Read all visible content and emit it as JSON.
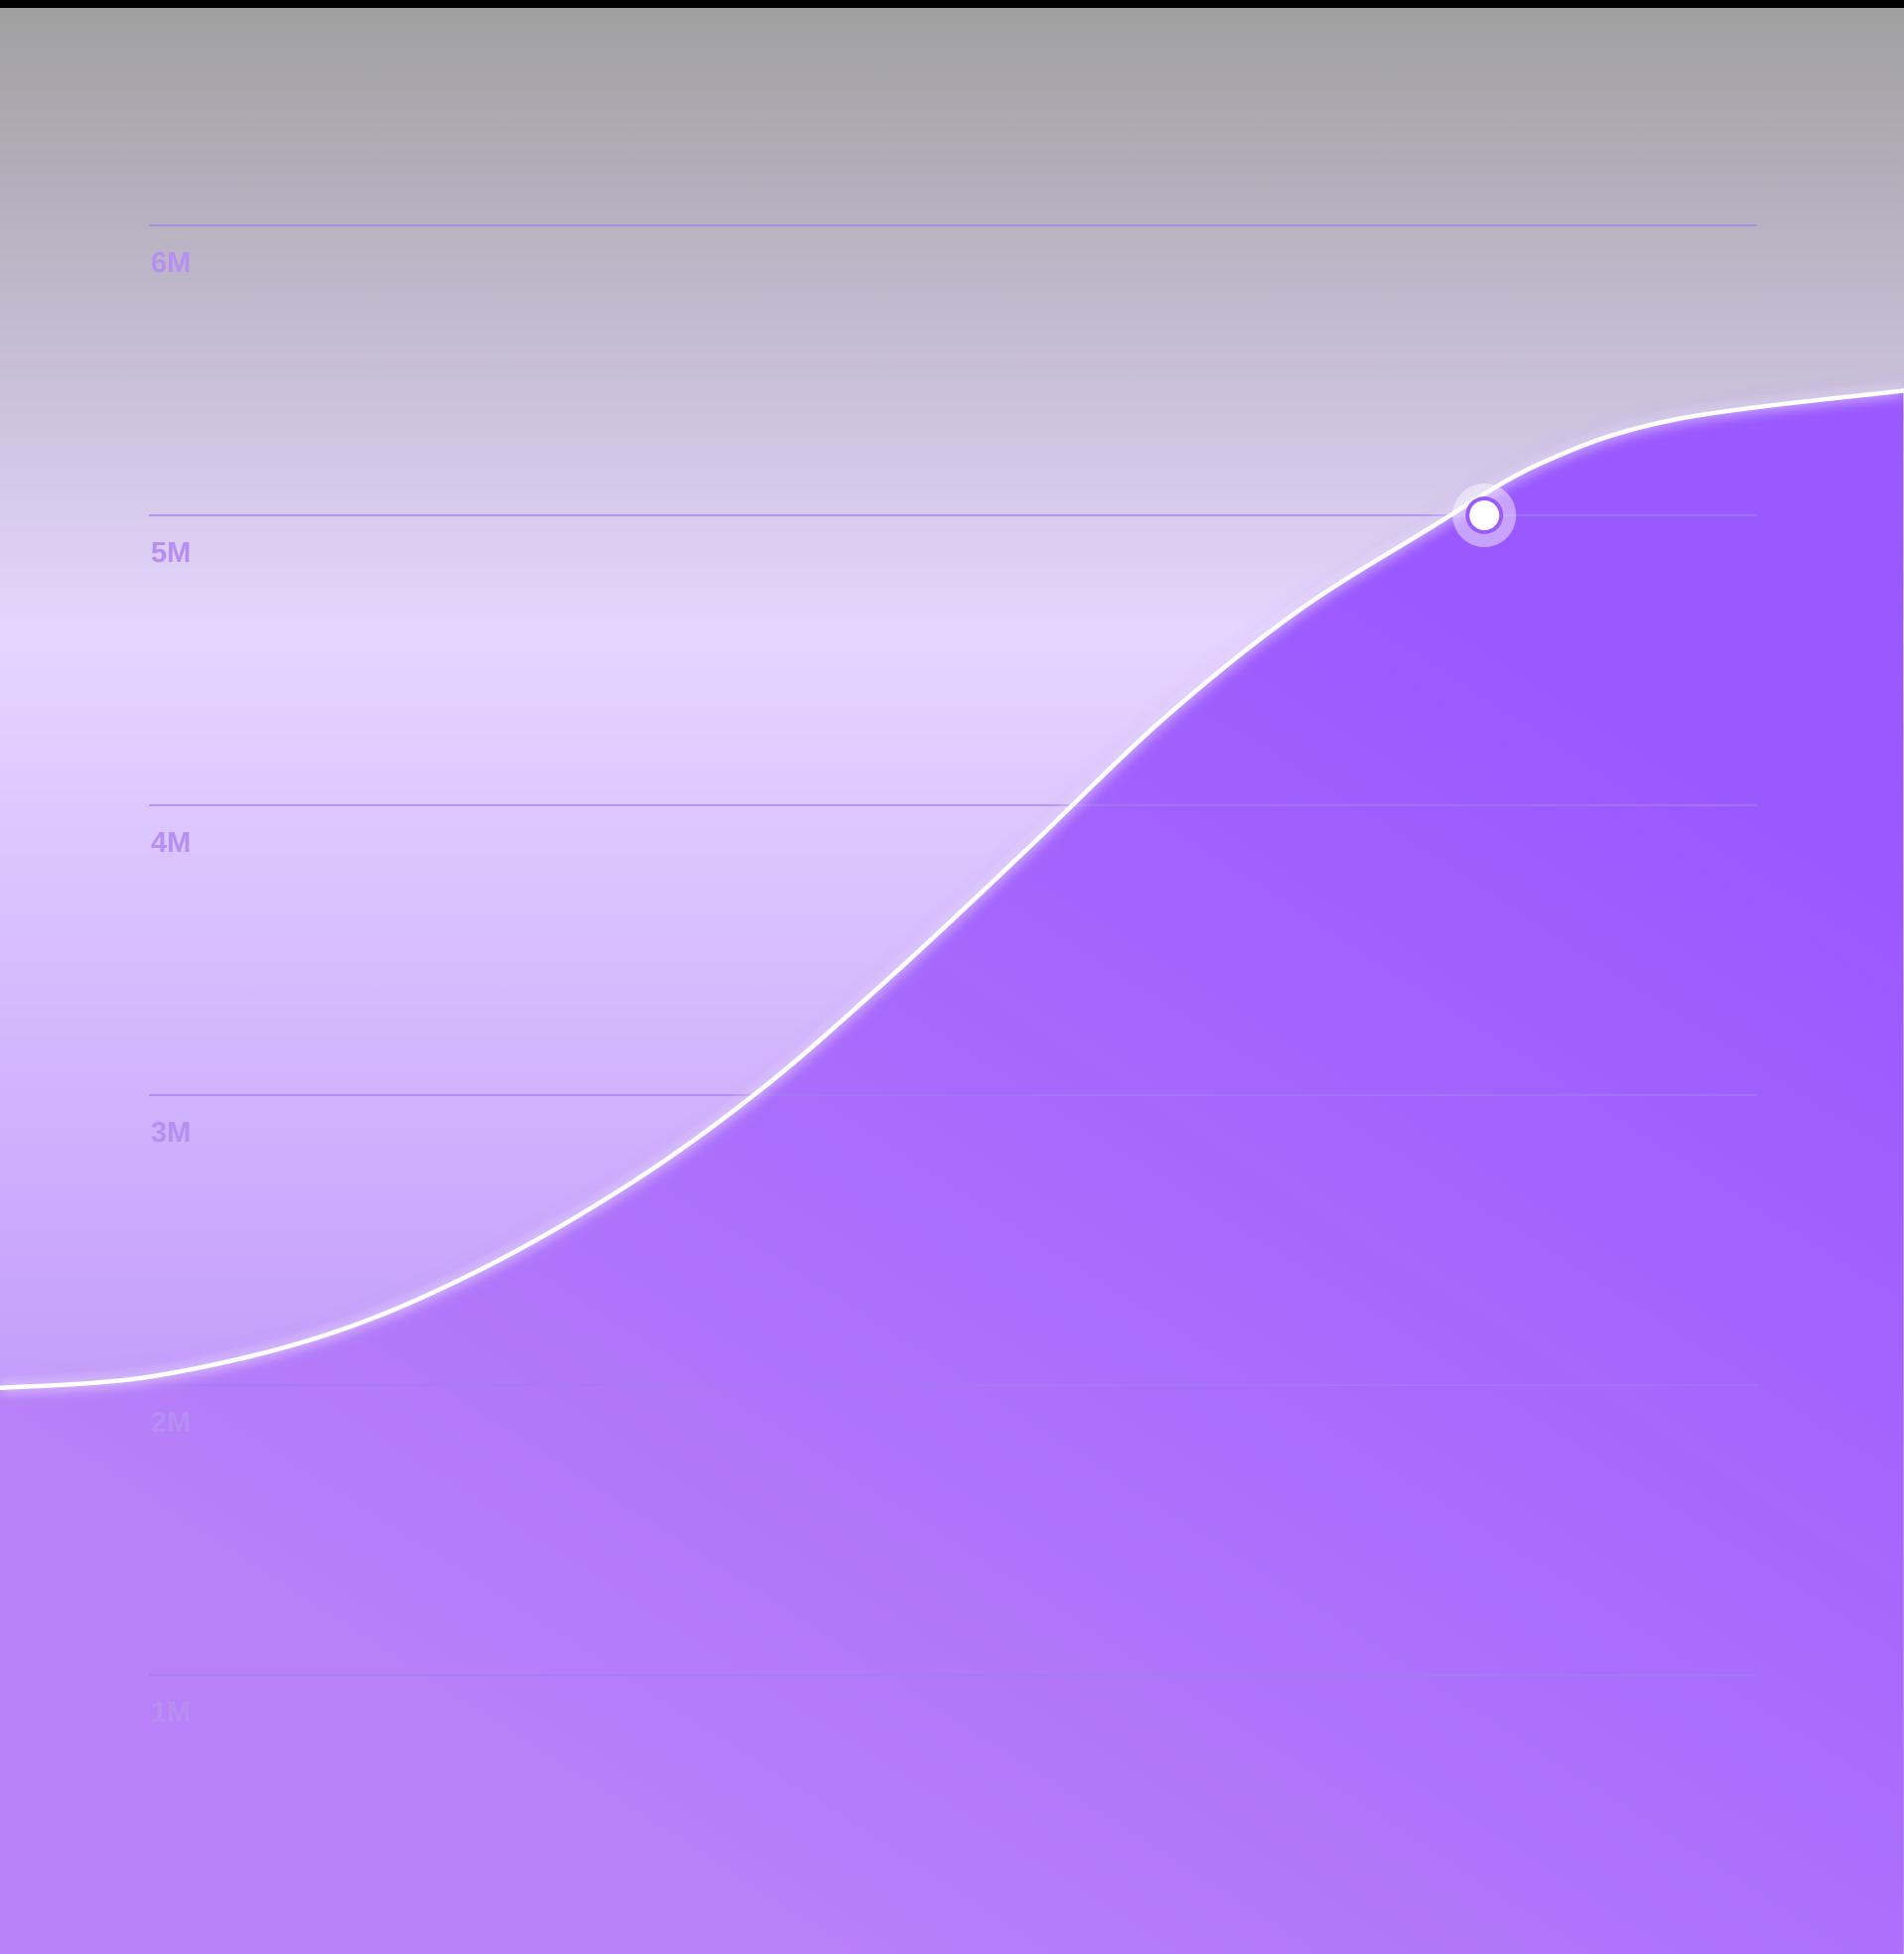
{
  "chart_data": {
    "type": "area",
    "title": "",
    "xlabel": "",
    "ylabel": "",
    "y_ticks": [
      {
        "value": 6000000,
        "label": "6M"
      },
      {
        "value": 5000000,
        "label": "5M"
      },
      {
        "value": 4000000,
        "label": "4M"
      },
      {
        "value": 3000000,
        "label": "3M"
      },
      {
        "value": 2000000,
        "label": "2M"
      },
      {
        "value": 1000000,
        "label": "1M"
      }
    ],
    "ylim": [
      0,
      6000000
    ],
    "xlim": [
      0,
      100
    ],
    "grid": true,
    "series": [
      {
        "values": [
          {
            "x": 0,
            "y": 1990000
          },
          {
            "x": 8,
            "y": 2030000
          },
          {
            "x": 17,
            "y": 2170000
          },
          {
            "x": 25,
            "y": 2390000
          },
          {
            "x": 33,
            "y": 2690000
          },
          {
            "x": 40,
            "y": 3020000
          },
          {
            "x": 47,
            "y": 3420000
          },
          {
            "x": 54,
            "y": 3850000
          },
          {
            "x": 61,
            "y": 4290000
          },
          {
            "x": 68,
            "y": 4660000
          },
          {
            "x": 75,
            "y": 4950000
          },
          {
            "x": 81,
            "y": 5180000
          },
          {
            "x": 88,
            "y": 5330000
          },
          {
            "x": 100,
            "y": 5430000
          }
        ]
      }
    ],
    "highlight_point": {
      "x": 78,
      "y": 5000000
    },
    "colors": {
      "background_top": "#a0a0a0",
      "background_mid": "#e5d5ff",
      "background_bottom": "#c39cfb",
      "area_top": "#9a58ff",
      "area_bottom": "#b880f9",
      "line": "#ffffff",
      "grid": "#a27df0",
      "tick_label": "#b78ff3"
    }
  }
}
